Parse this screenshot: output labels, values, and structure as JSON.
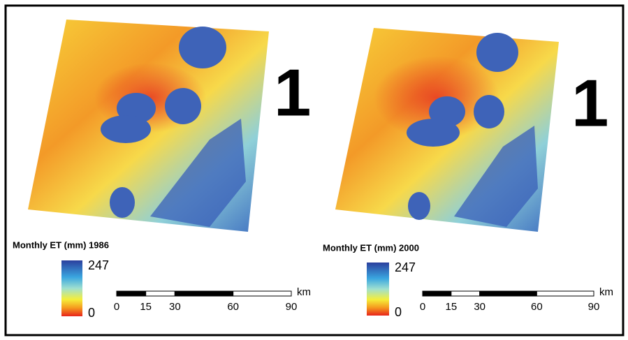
{
  "panels": [
    {
      "label": "1",
      "title": "Monthly ET (mm) 1986",
      "legend": {
        "max": 247,
        "min": 0
      },
      "scale_bar": {
        "ticks": [
          0,
          15,
          30,
          60,
          90
        ],
        "unit": "km"
      }
    },
    {
      "label": "1",
      "title": "Monthly ET (mm) 2000",
      "legend": {
        "max": 247,
        "min": 0
      },
      "scale_bar": {
        "ticks": [
          0,
          15,
          30,
          60,
          90
        ],
        "unit": "km"
      }
    }
  ]
}
